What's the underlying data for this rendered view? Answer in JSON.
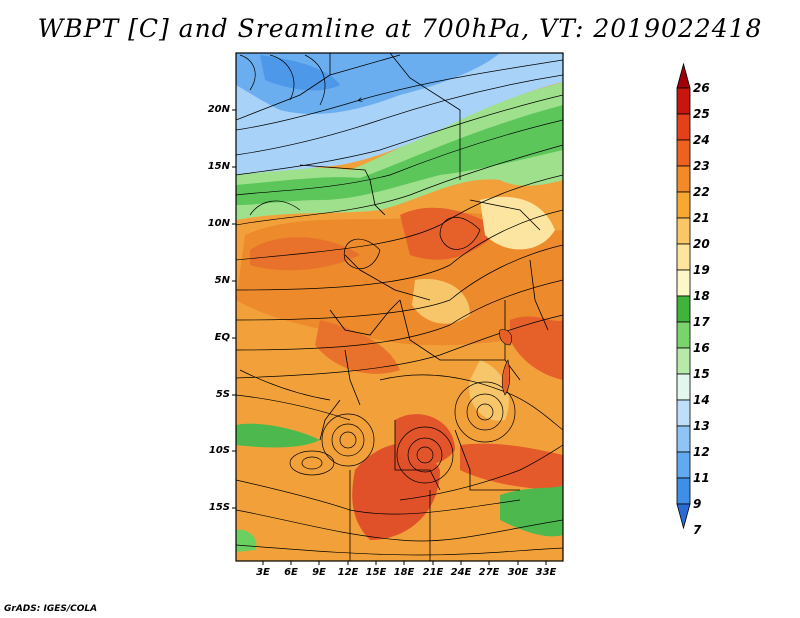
{
  "title": "WBPT [C] and Sreamline at 700hPa, VT: 2019022418",
  "credit": "GrADS: IGES/COLA",
  "map": {
    "lat_ticks": [
      "20N",
      "15N",
      "10N",
      "5N",
      "EQ",
      "5S",
      "10S",
      "15S"
    ],
    "lon_ticks": [
      "3E",
      "6E",
      "9E",
      "12E",
      "15E",
      "18E",
      "21E",
      "24E",
      "27E",
      "30E",
      "33E"
    ],
    "field": "wet-bulb potential temperature",
    "overlay": "streamlines",
    "region_colors": {
      "north_cold": "#6aaef0",
      "north_cool": "#a8d2f7",
      "band_green": "#5cc65a",
      "band_light_green": "#9fe08d",
      "warm_orange": "#f2a13a",
      "warm_dark": "#e6752a",
      "hot_red": "#de4a22",
      "pale": "#fbe5a0",
      "ocean_green": "#4cb84e"
    }
  },
  "colorbar": {
    "labels": [
      "26",
      "25",
      "24",
      "23",
      "22",
      "21",
      "20",
      "19",
      "18",
      "17",
      "16",
      "15",
      "14",
      "13",
      "12",
      "11",
      "9",
      "7"
    ],
    "colors": [
      "#a0000a",
      "#c8160e",
      "#e4401a",
      "#ee6220",
      "#f38a28",
      "#f7a833",
      "#fbc766",
      "#fde59e",
      "#fbf7c7",
      "#3fb33b",
      "#7bd36e",
      "#b6eaa6",
      "#e3f7ee",
      "#bedffa",
      "#8fc5f6",
      "#61a9f1",
      "#3f8ee8",
      "#2b6bd6"
    ]
  }
}
